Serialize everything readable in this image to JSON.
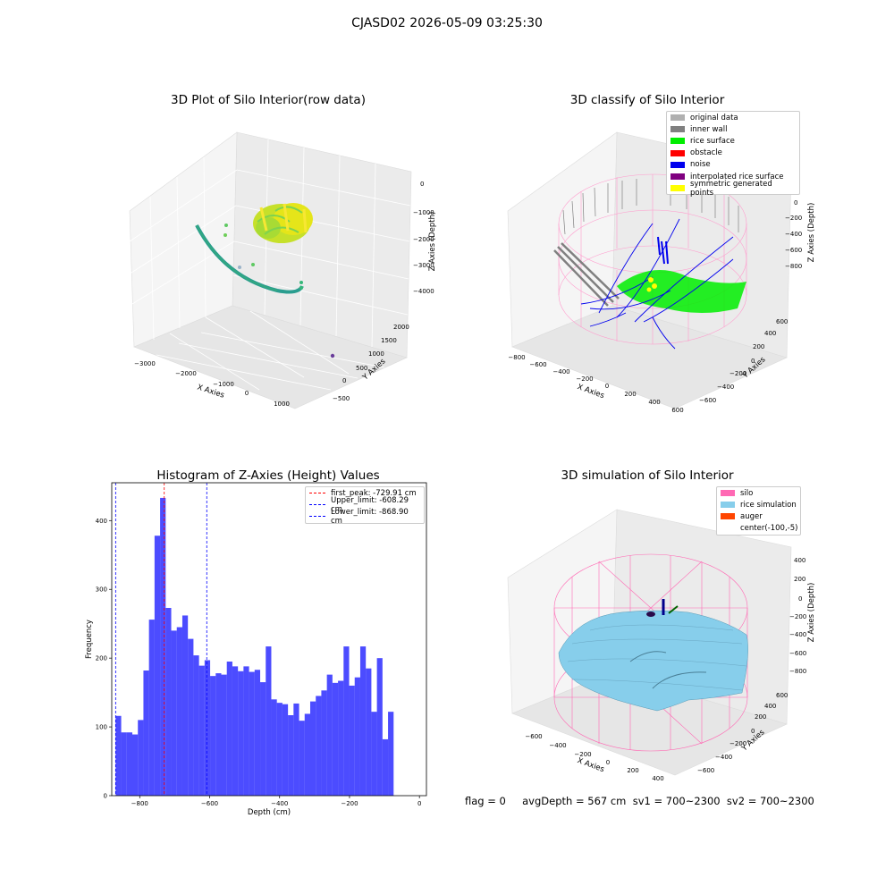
{
  "suptitle": "CJASD02 2026-05-09 03:25:30",
  "status_text": "flag = 0     avgDepth = 567 cm  sv1 = 700~2300  sv2 = 700~2300",
  "panels": {
    "raw": {
      "title": "3D Plot of Silo Interior(row data)",
      "x_ticks": [
        "−3000",
        "−2000",
        "−1000",
        "0",
        "1000"
      ],
      "y_ticks": [
        "−500",
        "0",
        "500",
        "1000",
        "1500",
        "2000"
      ],
      "z_ticks": [
        "0",
        "−1000",
        "−2000",
        "−3000",
        "−4000"
      ],
      "xlabel": "X Axies",
      "ylabel": "Y Axies",
      "zlabel": "Z Axies (Depth)"
    },
    "classify": {
      "title": "3D classify of Silo Interior",
      "x_ticks": [
        "−800",
        "−600",
        "−400",
        "−200",
        "0",
        "200",
        "400",
        "600"
      ],
      "y_ticks": [
        "−600",
        "−400",
        "−200",
        "0",
        "200",
        "400",
        "600"
      ],
      "z_ticks": [
        "200",
        "0",
        "−200",
        "−400",
        "−600",
        "−800"
      ],
      "xlabel": "X Axies",
      "ylabel": "Y Axies",
      "zlabel": "Z Axies (Depth)",
      "legend": [
        {
          "label": "original data",
          "color": "#b0b0b0"
        },
        {
          "label": "inner wall",
          "color": "#808080"
        },
        {
          "label": "rice surface",
          "color": "#00ee00"
        },
        {
          "label": "obstacle",
          "color": "#ff0000"
        },
        {
          "label": "noise",
          "color": "#0000ee"
        },
        {
          "label": "interpolated rice surface",
          "color": "#800080"
        },
        {
          "label": "symmetric generated points",
          "color": "#ffff00"
        }
      ]
    },
    "simulation": {
      "title": "3D simulation of Silo Interior",
      "x_ticks": [
        "−600",
        "−400",
        "−200",
        "0",
        "200",
        "400"
      ],
      "y_ticks": [
        "−600",
        "−400",
        "−200",
        "0",
        "200",
        "400",
        "600"
      ],
      "z_ticks": [
        "400",
        "200",
        "0",
        "−200",
        "−400",
        "−600",
        "−800"
      ],
      "xlabel": "X Axies",
      "ylabel": "Y Axies",
      "zlabel": "Z Axies (Depth)",
      "legend": [
        {
          "label": "silo",
          "color": "#ff69b4"
        },
        {
          "label": "rice simulation",
          "color": "#87ceeb"
        },
        {
          "label": "auger",
          "color": "#ff4500"
        },
        {
          "label": "center(-100,-5)",
          "color": "none"
        }
      ]
    }
  },
  "chart_data": {
    "type": "bar",
    "title": "Histogram of Z-Axies (Height) Values",
    "xlabel": "Depth (cm)",
    "ylabel": "Frequency",
    "xlim": [
      -880,
      20
    ],
    "ylim": [
      0,
      455
    ],
    "x_ticks": [
      -800,
      -600,
      -400,
      -200,
      0
    ],
    "x_tick_labels": [
      "−800",
      "−600",
      "−400",
      "−200",
      "0"
    ],
    "y_ticks": [
      0,
      100,
      200,
      300,
      400
    ],
    "bin_start": -868.9,
    "bin_width": 15.9,
    "color": "#0000ff",
    "values": [
      116,
      92,
      92,
      89,
      110,
      182,
      256,
      378,
      433,
      273,
      240,
      245,
      262,
      228,
      204,
      189,
      197,
      174,
      178,
      176,
      195,
      188,
      181,
      188,
      180,
      183,
      165,
      217,
      140,
      135,
      133,
      117,
      134,
      109,
      119,
      137,
      145,
      153,
      176,
      164,
      167,
      217,
      160,
      172,
      217,
      185,
      122,
      200,
      82,
      122
    ],
    "vlines": [
      {
        "label": "first_peak: -729.91 cm",
        "x": -729.91,
        "color": "#ff0000"
      },
      {
        "label": "Upper_limit: -608.29 cm",
        "x": -608.29,
        "color": "#0000ff"
      },
      {
        "label": "Lower_limit: -868.90 cm",
        "x": -868.9,
        "color": "#0000ff"
      }
    ]
  }
}
